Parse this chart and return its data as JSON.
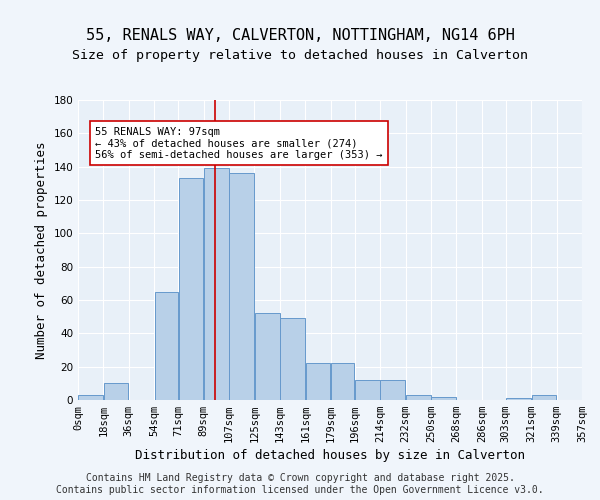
{
  "title_line1": "55, RENALS WAY, CALVERTON, NOTTINGHAM, NG14 6PH",
  "title_line2": "Size of property relative to detached houses in Calverton",
  "xlabel": "Distribution of detached houses by size in Calverton",
  "ylabel": "Number of detached properties",
  "bins": [
    0,
    18,
    36,
    54,
    71,
    89,
    107,
    125,
    143,
    161,
    179,
    196,
    214,
    232,
    250,
    268,
    286,
    303,
    321,
    339,
    357
  ],
  "bin_labels": [
    "0sqm",
    "18sqm",
    "36sqm",
    "54sqm",
    "71sqm",
    "89sqm",
    "107sqm",
    "125sqm",
    "143sqm",
    "161sqm",
    "179sqm",
    "196sqm",
    "214sqm",
    "232sqm",
    "250sqm",
    "268sqm",
    "286sqm",
    "303sqm",
    "321sqm",
    "339sqm",
    "357sqm"
  ],
  "counts": [
    3,
    10,
    0,
    65,
    133,
    139,
    136,
    52,
    49,
    22,
    22,
    12,
    12,
    3,
    2,
    0,
    0,
    1,
    3,
    0
  ],
  "bar_color": "#b8d0e8",
  "bar_edge_color": "#6699cc",
  "bg_color": "#e8f0f8",
  "grid_color": "#ffffff",
  "property_value": 97,
  "vline_color": "#cc0000",
  "annotation_text": "55 RENALS WAY: 97sqm\n← 43% of detached houses are smaller (274)\n56% of semi-detached houses are larger (353) →",
  "annotation_box_color": "#ffffff",
  "annotation_box_edge": "#cc0000",
  "ylim": [
    0,
    180
  ],
  "yticks": [
    0,
    20,
    40,
    60,
    80,
    100,
    120,
    140,
    160,
    180
  ],
  "footer_line1": "Contains HM Land Registry data © Crown copyright and database right 2025.",
  "footer_line2": "Contains public sector information licensed under the Open Government Licence v3.0.",
  "title_fontsize": 11,
  "subtitle_fontsize": 9.5,
  "axis_label_fontsize": 9,
  "tick_fontsize": 7.5,
  "footer_fontsize": 7,
  "annotation_fontsize": 7.5
}
